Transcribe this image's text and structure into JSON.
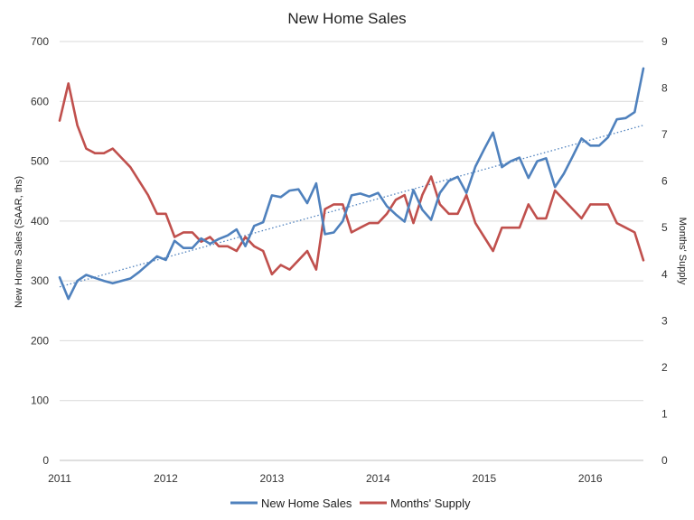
{
  "chart_data": {
    "type": "line",
    "title": "New Home Sales",
    "xlabel": "",
    "ylabel": "New Home Sales (SAAR, ths)",
    "y2label": "Months' Supply",
    "xlim": [
      2011,
      2016.5
    ],
    "ylim": [
      0,
      700
    ],
    "y2lim": [
      0,
      9
    ],
    "x_ticks": [
      2011,
      2012,
      2013,
      2014,
      2015,
      2016
    ],
    "x_tick_labels": [
      "2011",
      "2012",
      "2013",
      "2014",
      "2015",
      "2016"
    ],
    "y_ticks": [
      0,
      100,
      200,
      300,
      400,
      500,
      600,
      700
    ],
    "y2_ticks": [
      0,
      1,
      2,
      3,
      4,
      5,
      6,
      7,
      8,
      9
    ],
    "grid": "horizontal",
    "legend": "bottom",
    "trendline": {
      "series": "New Home Sales",
      "style": "dotted",
      "start": 290,
      "end": 560
    },
    "x": [
      2011.0,
      2011.083,
      2011.167,
      2011.25,
      2011.333,
      2011.417,
      2011.5,
      2011.583,
      2011.667,
      2011.75,
      2011.833,
      2011.917,
      2012.0,
      2012.083,
      2012.167,
      2012.25,
      2012.333,
      2012.417,
      2012.5,
      2012.583,
      2012.667,
      2012.75,
      2012.833,
      2012.917,
      2013.0,
      2013.083,
      2013.167,
      2013.25,
      2013.333,
      2013.417,
      2013.5,
      2013.583,
      2013.667,
      2013.75,
      2013.833,
      2013.917,
      2014.0,
      2014.083,
      2014.167,
      2014.25,
      2014.333,
      2014.417,
      2014.5,
      2014.583,
      2014.667,
      2014.75,
      2014.833,
      2014.917,
      2015.0,
      2015.083,
      2015.167,
      2015.25,
      2015.333,
      2015.417,
      2015.5,
      2015.583,
      2015.667,
      2015.75,
      2015.833,
      2015.917,
      2016.0,
      2016.083,
      2016.167,
      2016.25,
      2016.333,
      2016.417,
      2016.5
    ],
    "series": [
      {
        "name": "New Home Sales",
        "axis": "left",
        "color": "#4f81bd",
        "values": [
          306,
          270,
          300,
          310,
          305,
          300,
          296,
          300,
          304,
          315,
          328,
          341,
          335,
          367,
          355,
          355,
          371,
          362,
          370,
          376,
          386,
          358,
          392,
          398,
          443,
          440,
          451,
          453,
          430,
          463,
          378,
          381,
          400,
          443,
          446,
          441,
          447,
          425,
          411,
          399,
          452,
          419,
          402,
          447,
          467,
          474,
          447,
          491,
          520,
          548,
          490,
          500,
          506,
          472,
          500,
          505,
          457,
          479,
          508,
          538,
          526,
          526,
          540,
          570,
          572,
          582,
          655
        ]
      },
      {
        "name": "Months' Supply",
        "axis": "right",
        "color": "#c0504d",
        "values": [
          7.3,
          8.1,
          7.2,
          6.7,
          6.6,
          6.6,
          6.7,
          6.5,
          6.3,
          6.0,
          5.7,
          5.3,
          5.3,
          4.8,
          4.9,
          4.9,
          4.7,
          4.8,
          4.6,
          4.6,
          4.5,
          4.8,
          4.6,
          4.5,
          4.0,
          4.2,
          4.1,
          4.3,
          4.5,
          4.1,
          5.4,
          5.5,
          5.5,
          4.9,
          5.0,
          5.1,
          5.1,
          5.3,
          5.6,
          5.7,
          5.1,
          5.7,
          6.1,
          5.5,
          5.3,
          5.3,
          5.7,
          5.1,
          4.8,
          4.5,
          5.0,
          5.0,
          5.0,
          5.5,
          5.2,
          5.2,
          5.8,
          5.6,
          5.4,
          5.2,
          5.5,
          5.5,
          5.5,
          5.1,
          5.0,
          4.9,
          4.3
        ]
      }
    ]
  }
}
